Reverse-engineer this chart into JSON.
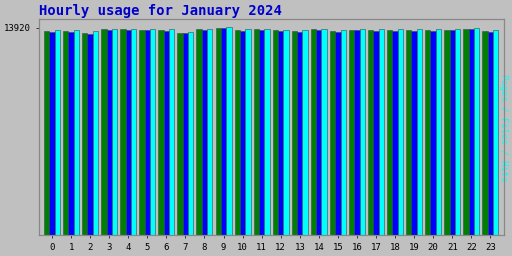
{
  "title": "Hourly usage for January 2024",
  "title_color": "#0000cc",
  "title_fontsize": 10,
  "ylabel_right": "Pages / Files / Hits",
  "hours": [
    0,
    1,
    2,
    3,
    4,
    5,
    6,
    7,
    8,
    9,
    10,
    11,
    12,
    13,
    14,
    15,
    16,
    17,
    18,
    19,
    20,
    21,
    22,
    23
  ],
  "pages": [
    13700,
    13700,
    13550,
    13820,
    13820,
    13810,
    13780,
    13600,
    13820,
    13950,
    13780,
    13820,
    13750,
    13700,
    13830,
    13720,
    13800,
    13780,
    13780,
    13760,
    13760,
    13800,
    13870,
    13700
  ],
  "files": [
    13650,
    13660,
    13500,
    13780,
    13770,
    13760,
    13740,
    13560,
    13790,
    13920,
    13740,
    13790,
    13710,
    13660,
    13790,
    13680,
    13760,
    13740,
    13740,
    13720,
    13720,
    13760,
    13830,
    13660
  ],
  "hits": [
    13800,
    13800,
    13700,
    13870,
    13870,
    13860,
    13830,
    13680,
    13870,
    14000,
    13860,
    13870,
    13800,
    13760,
    13880,
    13780,
    13860,
    13840,
    13840,
    13820,
    13820,
    13860,
    13930,
    13760
  ],
  "pages_color": "#008000",
  "files_color": "#0000ff",
  "hits_color": "#00ffff",
  "bg_color": "#c0c0c0",
  "plot_bg_color": "#c0c0c0",
  "bar_edge_color": "#2f4f4f",
  "ylim_min": 0,
  "ylim_max": 14500,
  "ytick_val": 13920,
  "ytick_label": "13920",
  "bar_width": 0.28
}
